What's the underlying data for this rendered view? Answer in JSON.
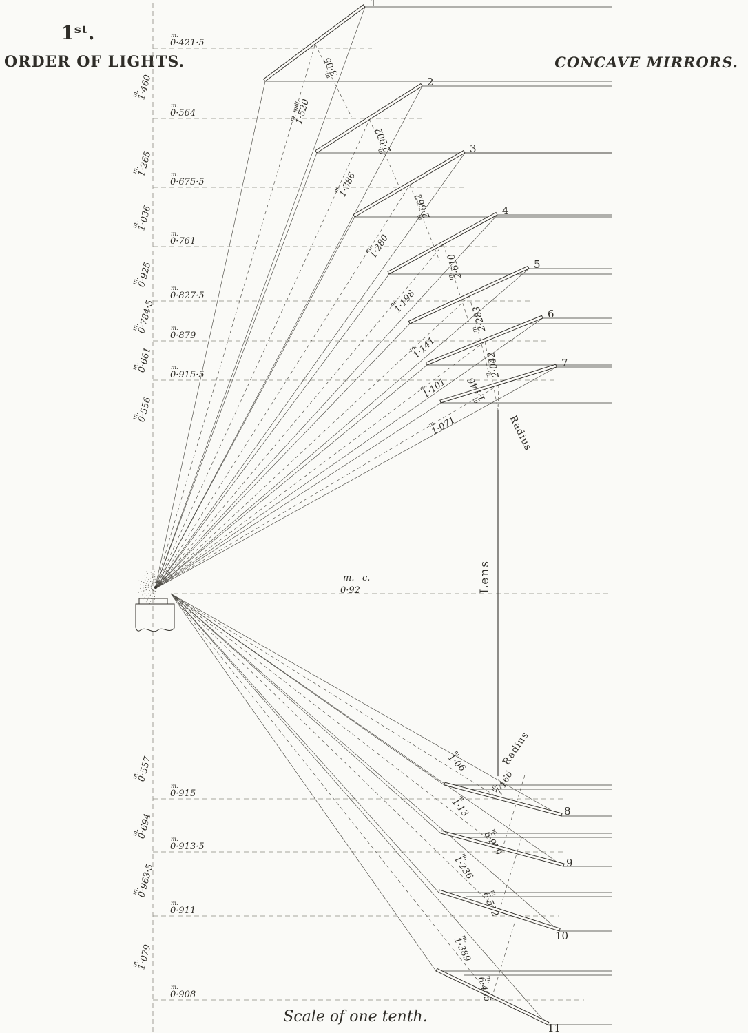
{
  "titles": {
    "order_sup": "1ˢᵗ.",
    "order_main": "ORDER OF LIGHTS.",
    "right_title": "CONCAVE MIRRORS.",
    "scale_caption": "Scale of one tenth.",
    "lens_label": "Lens",
    "radius_label_upper": "Radius",
    "radius_label_lower": "Radius"
  },
  "unit_prefix": "m.",
  "center_distance": {
    "prefix1": "m.",
    "prefix2": "c.",
    "value": "0·92"
  },
  "upper_mirrors": [
    {
      "number": "1",
      "distance_prefix": "m. mill.",
      "distance": "1·520",
      "radius_prefix": "m.",
      "radius": "3·05"
    },
    {
      "number": "2",
      "distance_prefix": "m.",
      "distance": "1·386",
      "radius_prefix": "m.",
      "radius": "2·902"
    },
    {
      "number": "3",
      "distance_prefix": "m.",
      "distance": "1·280",
      "radius_prefix": "m.",
      "radius": "2·662"
    },
    {
      "number": "4",
      "distance_prefix": "m.",
      "distance": "1·198",
      "radius_prefix": "m.",
      "radius": "2·610"
    },
    {
      "number": "5",
      "distance_prefix": "m.",
      "distance": "1·141",
      "radius_prefix": "m.",
      "radius": "2·283"
    },
    {
      "number": "6",
      "distance_prefix": "m.",
      "distance": "1·101",
      "radius_prefix": "m.",
      "radius": "2·042"
    },
    {
      "number": "7",
      "distance_prefix": "m.",
      "distance": "1·071",
      "radius_prefix": "m.",
      "radius": "1·946"
    }
  ],
  "lower_mirrors": [
    {
      "number": "8",
      "distance_prefix": "m.",
      "distance": "1·06",
      "radius_prefix": "m.",
      "radius": "7·166"
    },
    {
      "number": "9",
      "distance_prefix": "m.",
      "distance": "1·13",
      "radius_prefix": "m.",
      "radius": "6·979"
    },
    {
      "number": "10",
      "distance_prefix": "m.",
      "distance": "1·236",
      "radius_prefix": "m.",
      "radius": "6·572"
    },
    {
      "number": "11",
      "distance_prefix": "m.",
      "distance": "1·389",
      "radius_prefix": "m.",
      "radius": "6·465"
    }
  ],
  "upper_scale": {
    "horizontal_values": [
      "0·421·5",
      "0·564",
      "0·675·5",
      "0·761",
      "0·827·5",
      "0·879",
      "0·915·5"
    ],
    "vertical_values": [
      "1·460",
      "1·265",
      "1·036",
      "0·925",
      "0·784·5",
      "0·661",
      "0·556"
    ]
  },
  "lower_scale": {
    "horizontal_values": [
      "0·915",
      "0·913·5",
      "0·911",
      "0·908"
    ],
    "vertical_values": [
      "0·557",
      "0·694",
      "0·963·5",
      "1·079"
    ]
  }
}
